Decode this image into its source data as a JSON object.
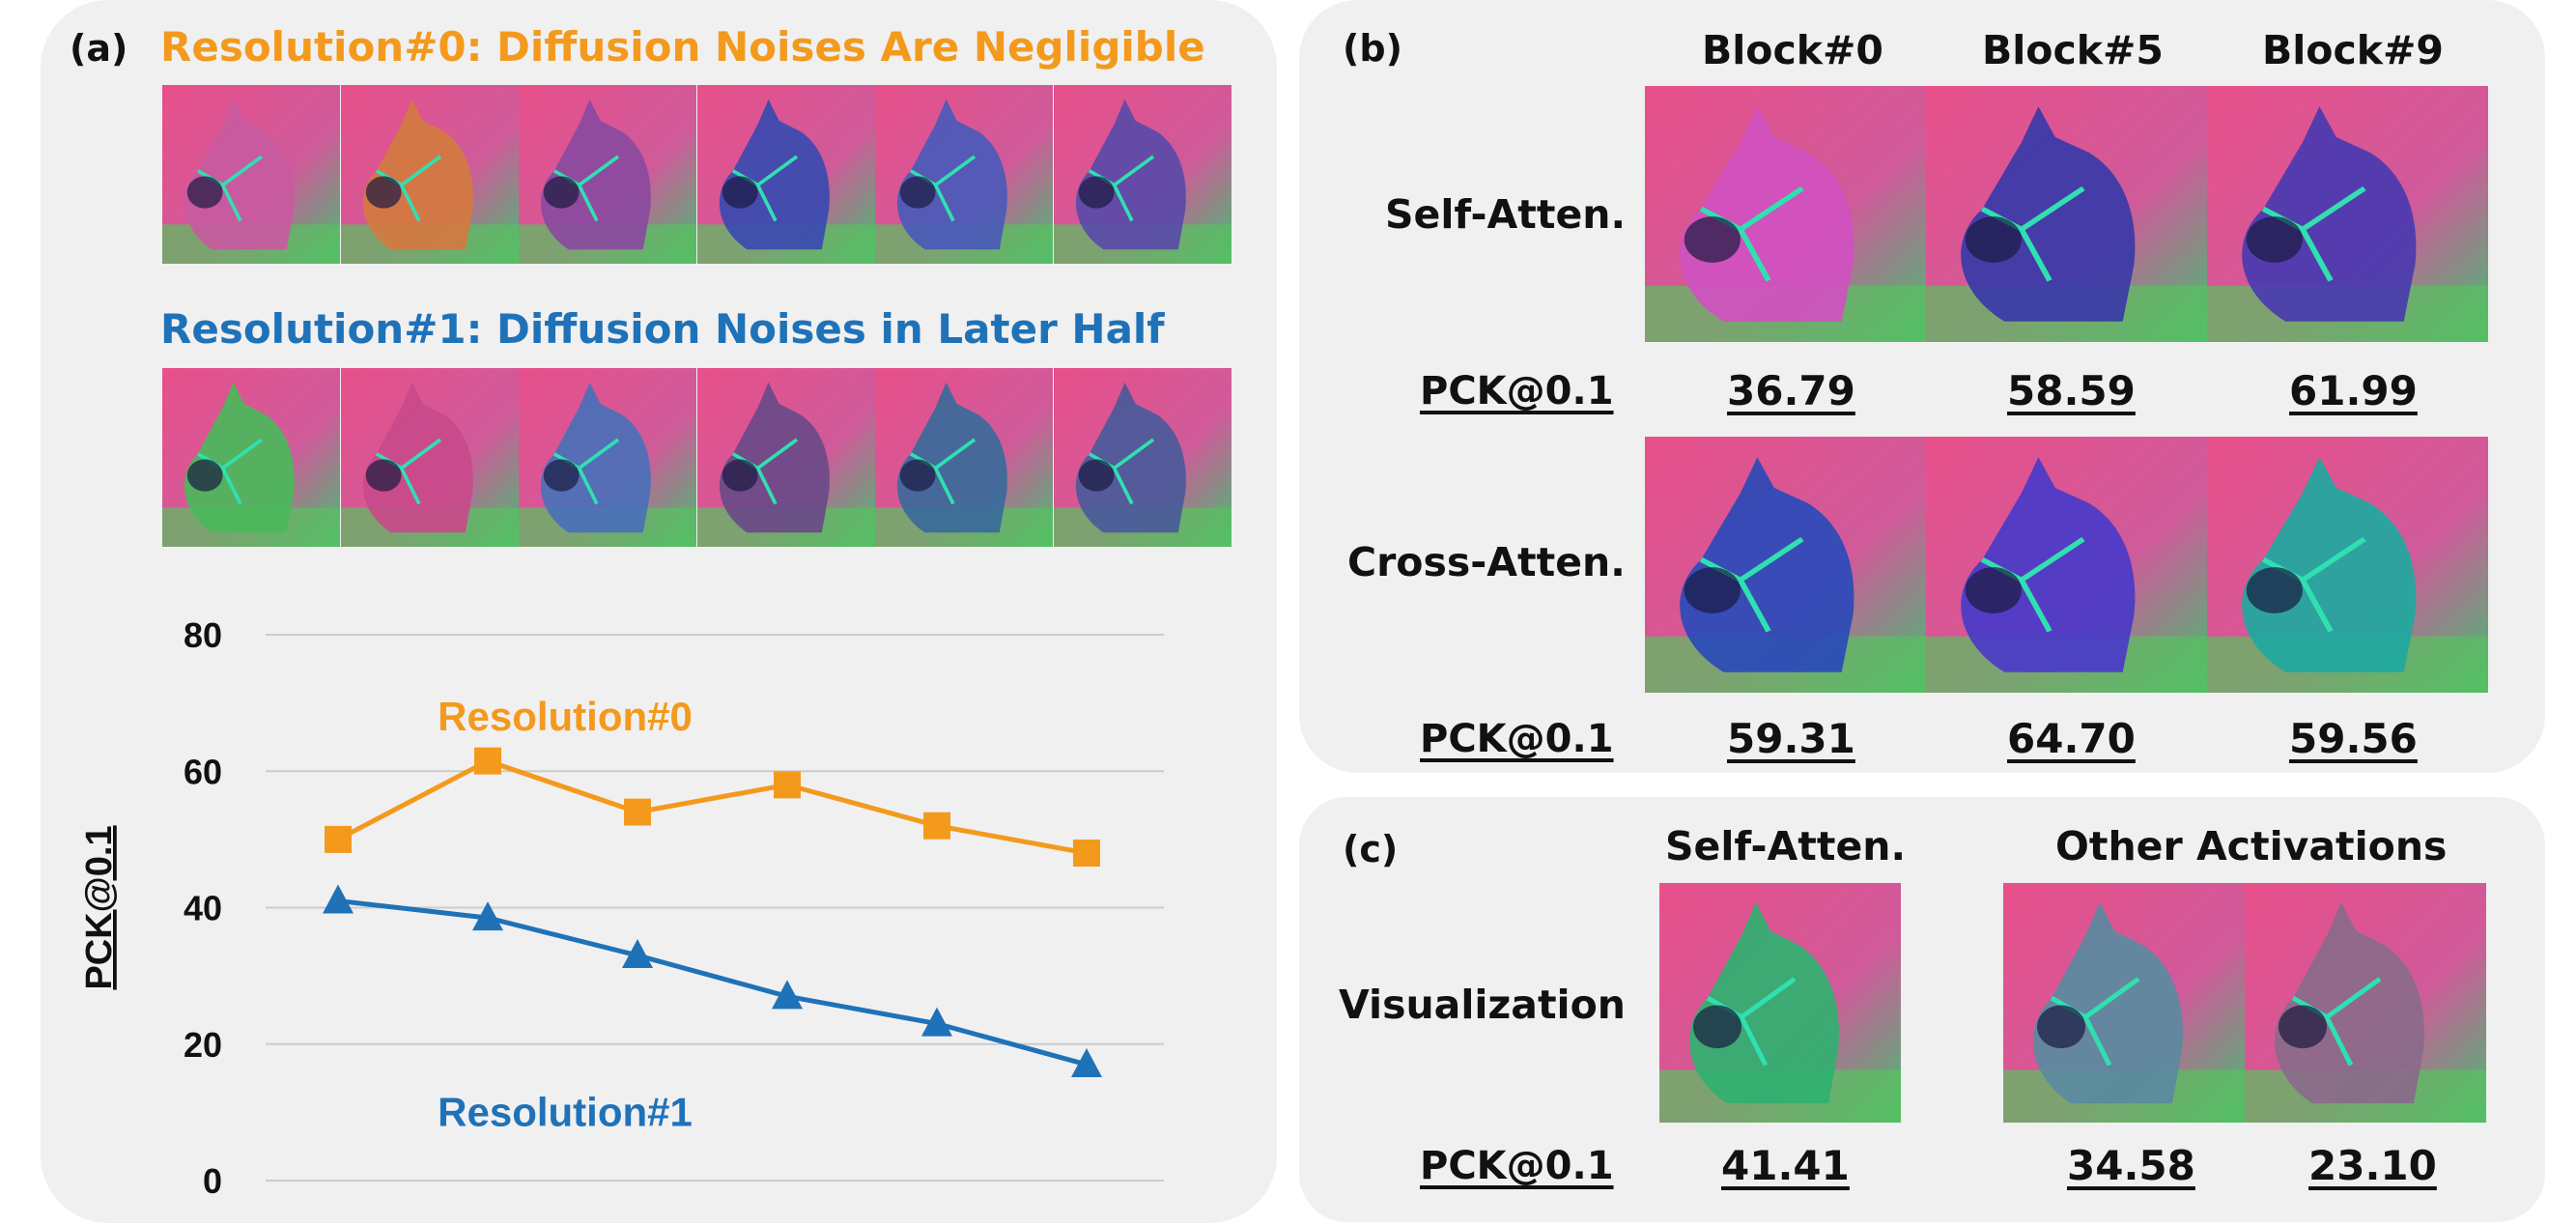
{
  "panel_a": {
    "letter": "(a)",
    "res0_title": "Resolution#0: Diffusion Noises Are Negligible",
    "res1_title": "Resolution#1: Diffusion Noises in Later Half",
    "res0_thumb_tints": [
      "#c85aa0",
      "#d47a40",
      "#8a4aa0",
      "#3a4ab0",
      "#4a5ab8",
      "#5a4aa8"
    ],
    "res1_thumb_tints": [
      "#4ab85a",
      "#c84a8a",
      "#4a70b8",
      "#6a4a88",
      "#3a6a9a",
      "#4a5a9a"
    ]
  },
  "panel_b": {
    "letter": "(b)",
    "columns": [
      "Block#0",
      "Block#5",
      "Block#9"
    ],
    "rows": [
      {
        "label": "Self-Atten.",
        "pck_label": "PCK@0.1",
        "scores": [
          "36.79",
          "58.59",
          "61.99"
        ],
        "tints": [
          "#d050c0",
          "#3a3aa8",
          "#4a3ab0"
        ]
      },
      {
        "label": "Cross-Atten.",
        "pck_label": "PCK@0.1",
        "scores": [
          "59.31",
          "64.70",
          "59.56"
        ],
        "tints": [
          "#2a4ab8",
          "#4a3ac8",
          "#20a8a0"
        ]
      }
    ]
  },
  "panel_c": {
    "letter": "(c)",
    "self_label": "Self-Atten.",
    "other_label": "Other Activations",
    "row_label": "Visualization",
    "pck_label": "PCK@0.1",
    "scores": [
      "41.41",
      "34.58",
      "23.10"
    ],
    "tints": [
      "#30b070",
      "#5a8aa0",
      "#8a6a8a"
    ]
  },
  "chart_data": {
    "type": "line",
    "x": [
      1,
      2,
      3,
      4,
      5,
      6
    ],
    "ylabel": "PCK@0.1",
    "xlabel": "",
    "ylim": [
      0,
      80
    ],
    "yticks": [
      "0",
      "20",
      "40",
      "60",
      "80"
    ],
    "grid": true,
    "series": [
      {
        "name": "Resolution#0",
        "color": "#f39a1d",
        "marker": "square",
        "values": [
          50,
          61.5,
          54,
          58,
          52,
          48
        ]
      },
      {
        "name": "Resolution#1",
        "color": "#1f72b8",
        "marker": "triangle",
        "values": [
          41,
          38.5,
          33,
          27,
          23,
          17
        ]
      }
    ]
  }
}
